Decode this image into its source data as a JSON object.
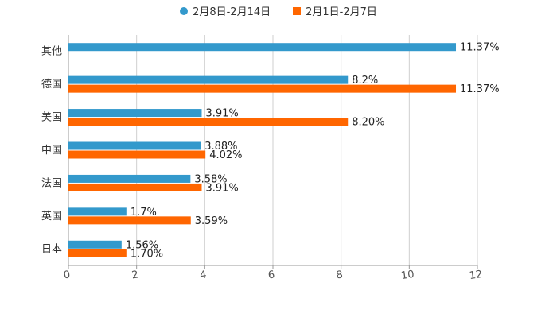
{
  "chart_data": {
    "type": "bar",
    "orientation": "horizontal",
    "title": "",
    "xlabel": "",
    "ylabel": "",
    "xlim": [
      0,
      12
    ],
    "x_ticks": [
      "0",
      "2",
      "4",
      "6",
      "8",
      "10",
      "12"
    ],
    "grid": true,
    "legend_position": "top-center",
    "categories": [
      "其他",
      "德国",
      "美国",
      "中国",
      "法国",
      "英国",
      "日本"
    ],
    "series": [
      {
        "name": "2月8日-2月14日",
        "color": "#3399cc",
        "marker": "circle",
        "values": [
          11.37,
          8.2,
          3.91,
          3.88,
          3.58,
          1.7,
          1.56
        ],
        "labels": [
          "11.37%",
          "8.2%",
          "3.91%",
          "3.88%",
          "3.58%",
          "1.7%",
          "1.56%"
        ]
      },
      {
        "name": "2月1日-2月7日",
        "color": "#ff6600",
        "marker": "square",
        "values": [
          null,
          11.37,
          8.2,
          4.02,
          3.91,
          3.59,
          1.7
        ],
        "labels": [
          null,
          "11.37%",
          "8.20%",
          "4.02%",
          "3.91%",
          "3.59%",
          "1.70%"
        ]
      }
    ]
  }
}
